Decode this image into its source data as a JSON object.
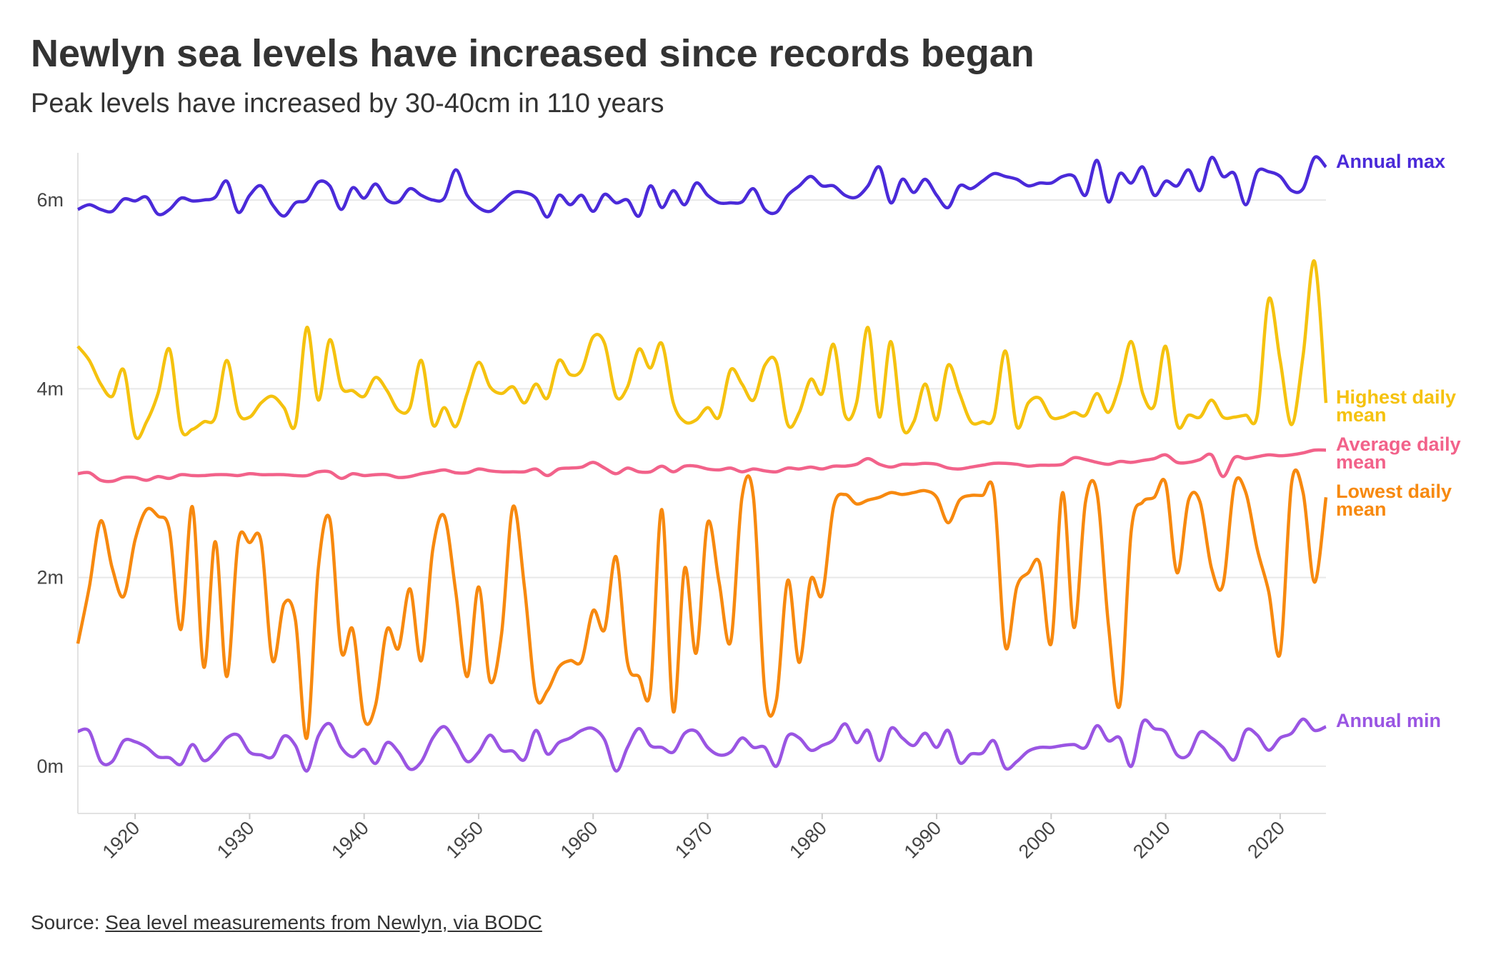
{
  "chart_data": {
    "type": "line",
    "title": "Newlyn sea levels have increased since records began",
    "subtitle": "Peak levels have increased by 30-40cm in 110 years",
    "source_label": "Source:",
    "source_link": "Sea level measurements from Newlyn, via BODC",
    "x": [
      1915,
      1916,
      1917,
      1918,
      1919,
      1920,
      1921,
      1922,
      1923,
      1924,
      1925,
      1926,
      1927,
      1928,
      1929,
      1930,
      1931,
      1932,
      1933,
      1934,
      1935,
      1936,
      1937,
      1938,
      1939,
      1940,
      1941,
      1942,
      1943,
      1944,
      1945,
      1946,
      1947,
      1948,
      1949,
      1950,
      1951,
      1952,
      1953,
      1954,
      1955,
      1956,
      1957,
      1958,
      1959,
      1960,
      1961,
      1962,
      1963,
      1964,
      1965,
      1966,
      1967,
      1968,
      1969,
      1970,
      1971,
      1972,
      1973,
      1974,
      1975,
      1976,
      1977,
      1978,
      1979,
      1980,
      1981,
      1982,
      1983,
      1984,
      1985,
      1986,
      1987,
      1988,
      1989,
      1990,
      1991,
      1992,
      1993,
      1994,
      1995,
      1996,
      1997,
      1998,
      1999,
      2000,
      2001,
      2002,
      2003,
      2004,
      2005,
      2006,
      2007,
      2008,
      2009,
      2010,
      2011,
      2012,
      2013,
      2014,
      2015,
      2016,
      2017,
      2018,
      2019,
      2020,
      2021,
      2022,
      2023,
      2024
    ],
    "xlim": [
      1915,
      2024
    ],
    "xticks": [
      1920,
      1930,
      1940,
      1950,
      1960,
      1970,
      1980,
      1990,
      2000,
      2010,
      2020
    ],
    "ylim": [
      -0.5,
      6.5
    ],
    "yticks": [
      {
        "value": 0,
        "label": "0m"
      },
      {
        "value": 2,
        "label": "2m"
      },
      {
        "value": 4,
        "label": "4m"
      },
      {
        "value": 6,
        "label": "6m"
      }
    ],
    "grid": true,
    "series": [
      {
        "name": "Annual max",
        "color": "#4a2ad9",
        "values": [
          5.9,
          5.95,
          5.9,
          5.88,
          6.01,
          5.99,
          6.03,
          5.85,
          5.9,
          6.02,
          5.99,
          6.0,
          6.03,
          6.2,
          5.87,
          6.05,
          6.15,
          5.95,
          5.83,
          5.97,
          6.0,
          6.19,
          6.15,
          5.9,
          6.13,
          6.02,
          6.17,
          6.0,
          5.98,
          6.12,
          6.05,
          6.0,
          6.02,
          6.32,
          6.05,
          5.92,
          5.88,
          5.98,
          6.08,
          6.08,
          6.02,
          5.82,
          6.05,
          5.95,
          6.05,
          5.88,
          6.06,
          5.97,
          6.0,
          5.83,
          6.15,
          5.92,
          6.1,
          5.95,
          6.18,
          6.05,
          5.97,
          5.97,
          5.98,
          6.12,
          5.9,
          5.87,
          6.05,
          6.15,
          6.25,
          6.15,
          6.15,
          6.05,
          6.03,
          6.15,
          6.35,
          5.97,
          6.22,
          6.08,
          6.22,
          6.05,
          5.92,
          6.15,
          6.12,
          6.2,
          6.28,
          6.25,
          6.22,
          6.15,
          6.18,
          6.18,
          6.25,
          6.25,
          6.05,
          6.42,
          5.98,
          6.28,
          6.18,
          6.35,
          6.05,
          6.2,
          6.15,
          6.32,
          6.1,
          6.45,
          6.25,
          6.28,
          5.95,
          6.3,
          6.3,
          6.25,
          6.1,
          6.12,
          6.45,
          6.35
        ]
      },
      {
        "name": "Highest daily mean",
        "color": "#f5c20f",
        "values": [
          4.45,
          4.3,
          4.05,
          3.92,
          4.2,
          3.5,
          3.65,
          3.95,
          4.42,
          3.58,
          3.57,
          3.65,
          3.7,
          4.3,
          3.75,
          3.7,
          3.85,
          3.92,
          3.8,
          3.62,
          4.65,
          3.88,
          4.52,
          4.02,
          3.98,
          3.92,
          4.12,
          3.98,
          3.77,
          3.8,
          4.3,
          3.62,
          3.8,
          3.6,
          3.95,
          4.28,
          4.02,
          3.95,
          4.02,
          3.85,
          4.05,
          3.9,
          4.3,
          4.15,
          4.2,
          4.55,
          4.48,
          3.92,
          4.02,
          4.42,
          4.22,
          4.48,
          3.85,
          3.65,
          3.67,
          3.8,
          3.7,
          4.2,
          4.05,
          3.88,
          4.25,
          4.28,
          3.62,
          3.75,
          4.1,
          3.95,
          4.47,
          3.72,
          3.85,
          4.65,
          3.7,
          4.5,
          3.6,
          3.65,
          4.05,
          3.67,
          4.25,
          3.95,
          3.65,
          3.65,
          3.7,
          4.4,
          3.6,
          3.85,
          3.9,
          3.7,
          3.7,
          3.75,
          3.72,
          3.95,
          3.75,
          4.05,
          4.5,
          3.95,
          3.82,
          4.45,
          3.62,
          3.72,
          3.7,
          3.88,
          3.7,
          3.7,
          3.72,
          3.72,
          4.95,
          4.3,
          3.62,
          4.35,
          5.35,
          3.85
        ]
      },
      {
        "name": "Average daily mean",
        "color": "#f2628a",
        "values": [
          3.1,
          3.11,
          3.03,
          3.02,
          3.06,
          3.06,
          3.03,
          3.07,
          3.05,
          3.09,
          3.08,
          3.08,
          3.09,
          3.09,
          3.08,
          3.1,
          3.09,
          3.09,
          3.09,
          3.08,
          3.08,
          3.12,
          3.12,
          3.05,
          3.1,
          3.08,
          3.09,
          3.09,
          3.06,
          3.07,
          3.1,
          3.12,
          3.14,
          3.11,
          3.11,
          3.15,
          3.13,
          3.12,
          3.12,
          3.12,
          3.15,
          3.08,
          3.15,
          3.16,
          3.17,
          3.22,
          3.16,
          3.1,
          3.16,
          3.12,
          3.12,
          3.18,
          3.12,
          3.18,
          3.18,
          3.15,
          3.14,
          3.16,
          3.12,
          3.15,
          3.13,
          3.12,
          3.16,
          3.15,
          3.17,
          3.15,
          3.18,
          3.18,
          3.2,
          3.26,
          3.2,
          3.17,
          3.2,
          3.2,
          3.21,
          3.2,
          3.16,
          3.15,
          3.17,
          3.19,
          3.21,
          3.21,
          3.2,
          3.18,
          3.19,
          3.19,
          3.2,
          3.27,
          3.25,
          3.22,
          3.2,
          3.23,
          3.22,
          3.24,
          3.26,
          3.3,
          3.22,
          3.22,
          3.25,
          3.3,
          3.07,
          3.27,
          3.26,
          3.28,
          3.3,
          3.29,
          3.3,
          3.32,
          3.35,
          3.35
        ]
      },
      {
        "name": "Lowest daily mean",
        "color": "#f7890f",
        "values": [
          1.3,
          1.9,
          2.6,
          2.1,
          1.8,
          2.4,
          2.72,
          2.65,
          2.5,
          1.45,
          2.75,
          1.05,
          2.38,
          0.95,
          2.38,
          2.37,
          2.38,
          1.12,
          1.72,
          1.55,
          0.3,
          2.1,
          2.62,
          1.22,
          1.45,
          0.5,
          0.65,
          1.45,
          1.25,
          1.88,
          1.12,
          2.3,
          2.65,
          1.85,
          0.95,
          1.9,
          0.9,
          1.4,
          2.75,
          1.9,
          0.75,
          0.8,
          1.05,
          1.12,
          1.12,
          1.65,
          1.45,
          2.22,
          1.1,
          0.95,
          0.8,
          2.72,
          0.58,
          2.1,
          1.2,
          2.58,
          1.95,
          1.32,
          2.85,
          2.85,
          0.78,
          0.7,
          1.97,
          1.1,
          1.98,
          1.82,
          2.75,
          2.88,
          2.78,
          2.82,
          2.85,
          2.9,
          2.88,
          2.9,
          2.92,
          2.85,
          2.58,
          2.82,
          2.87,
          2.87,
          2.9,
          1.27,
          1.9,
          2.05,
          2.15,
          1.3,
          2.9,
          1.47,
          2.8,
          2.9,
          1.5,
          0.65,
          2.5,
          2.8,
          2.85,
          3.0,
          2.05,
          2.82,
          2.8,
          2.1,
          1.92,
          2.98,
          2.9,
          2.3,
          1.85,
          1.2,
          3.0,
          2.9,
          1.95,
          2.85
        ]
      },
      {
        "name": "Annual min",
        "color": "#9a55e3",
        "values": [
          0.37,
          0.37,
          0.05,
          0.05,
          0.27,
          0.26,
          0.2,
          0.1,
          0.09,
          0.02,
          0.23,
          0.06,
          0.15,
          0.3,
          0.33,
          0.15,
          0.12,
          0.1,
          0.32,
          0.22,
          -0.05,
          0.32,
          0.45,
          0.2,
          0.1,
          0.18,
          0.03,
          0.25,
          0.15,
          -0.03,
          0.05,
          0.3,
          0.42,
          0.25,
          0.05,
          0.15,
          0.33,
          0.17,
          0.16,
          0.07,
          0.38,
          0.13,
          0.25,
          0.3,
          0.38,
          0.4,
          0.28,
          -0.05,
          0.2,
          0.4,
          0.22,
          0.2,
          0.15,
          0.35,
          0.37,
          0.2,
          0.12,
          0.15,
          0.3,
          0.2,
          0.2,
          0.0,
          0.32,
          0.3,
          0.17,
          0.22,
          0.28,
          0.45,
          0.25,
          0.38,
          0.06,
          0.4,
          0.3,
          0.22,
          0.35,
          0.2,
          0.38,
          0.04,
          0.13,
          0.14,
          0.27,
          -0.02,
          0.05,
          0.16,
          0.2,
          0.2,
          0.22,
          0.23,
          0.2,
          0.43,
          0.27,
          0.3,
          0.0,
          0.47,
          0.4,
          0.36,
          0.12,
          0.12,
          0.36,
          0.3,
          0.2,
          0.07,
          0.38,
          0.33,
          0.17,
          0.3,
          0.35,
          0.5,
          0.38,
          0.42
        ]
      }
    ]
  }
}
